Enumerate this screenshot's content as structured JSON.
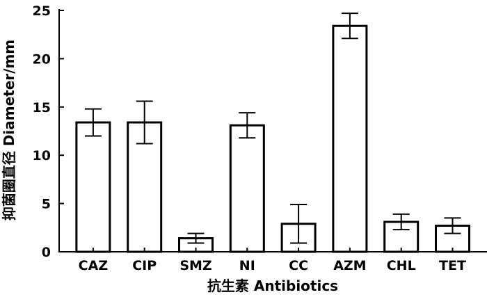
{
  "chart_data": {
    "type": "bar",
    "title": "",
    "xlabel": "抗生素 Antibiotics",
    "ylabel": "抑菌圈直径 Diameter/mm",
    "categories": [
      "CAZ",
      "CIP",
      "SMZ",
      "NI",
      "CC",
      "AZM",
      "CHL",
      "TET"
    ],
    "values": [
      13.4,
      13.4,
      1.4,
      13.1,
      2.9,
      23.4,
      3.1,
      2.7
    ],
    "errors": [
      1.4,
      2.2,
      0.5,
      1.3,
      2.0,
      1.3,
      0.8,
      0.8
    ],
    "ylim": [
      0,
      25
    ],
    "yticks": [
      0,
      5,
      10,
      15,
      20,
      25
    ],
    "grid": false,
    "legend": "none",
    "colors": {
      "bar_fill": "#ffffff",
      "bar_stroke": "#000000"
    }
  }
}
